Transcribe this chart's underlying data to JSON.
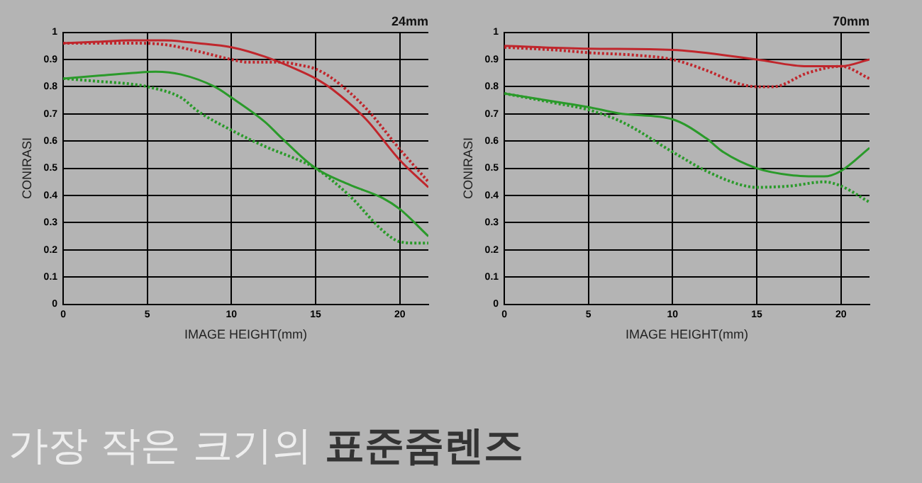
{
  "chart_data": [
    {
      "type": "line",
      "title": "24mm",
      "xlabel": "IMAGE HEIGHT(mm)",
      "ylabel": "CONIRASI",
      "xlim": [
        0,
        21.7
      ],
      "xticks": [
        0,
        5,
        10,
        15,
        20
      ],
      "ylim": [
        0,
        1
      ],
      "yticks": [
        0,
        0.1,
        0.2,
        0.3,
        0.4,
        0.5,
        0.6,
        0.7,
        0.8,
        0.9,
        1
      ],
      "grid": true,
      "marker": "none",
      "annotations": [
        "가장 작은 크기의",
        "표준줌렌즈"
      ],
      "series": [
        {
          "color": "#c0262c",
          "line_style": "solid",
          "x": [
            0,
            2,
            4,
            6,
            8,
            10,
            12,
            14,
            15,
            16,
            18,
            20,
            21.7
          ],
          "values": [
            0.96,
            0.965,
            0.97,
            0.97,
            0.96,
            0.945,
            0.91,
            0.86,
            0.83,
            0.79,
            0.68,
            0.53,
            0.43
          ]
        },
        {
          "color": "#c0262c",
          "line_style": "dotted",
          "x": [
            0,
            2,
            4,
            6,
            8,
            10,
            11,
            12,
            13,
            14,
            15,
            16,
            18,
            20,
            21.7
          ],
          "values": [
            0.96,
            0.96,
            0.96,
            0.955,
            0.93,
            0.9,
            0.89,
            0.89,
            0.89,
            0.88,
            0.865,
            0.83,
            0.72,
            0.57,
            0.45
          ]
        },
        {
          "color": "#2a9a2a",
          "line_style": "solid",
          "x": [
            0,
            2,
            4,
            5.5,
            7,
            9,
            10,
            12,
            13,
            15,
            17,
            19,
            20,
            21.7
          ],
          "values": [
            0.83,
            0.84,
            0.85,
            0.855,
            0.845,
            0.8,
            0.76,
            0.67,
            0.61,
            0.5,
            0.44,
            0.39,
            0.35,
            0.25
          ]
        },
        {
          "color": "#2a9a2a",
          "line_style": "dotted",
          "x": [
            0,
            2,
            4,
            5,
            7,
            8,
            10,
            12,
            14,
            15,
            17,
            19,
            20,
            21,
            21.7
          ],
          "values": [
            0.83,
            0.82,
            0.81,
            0.8,
            0.76,
            0.71,
            0.64,
            0.58,
            0.53,
            0.5,
            0.4,
            0.27,
            0.23,
            0.225,
            0.225
          ]
        }
      ]
    },
    {
      "type": "line",
      "title": "70mm",
      "xlabel": "IMAGE HEIGHT(mm)",
      "ylabel": "CONIRASI",
      "xlim": [
        0,
        21.7
      ],
      "xticks": [
        0,
        5,
        10,
        15,
        20
      ],
      "ylim": [
        0,
        1
      ],
      "yticks": [
        0,
        0.1,
        0.2,
        0.3,
        0.4,
        0.5,
        0.6,
        0.7,
        0.8,
        0.9,
        1
      ],
      "grid": true,
      "marker": "none",
      "series": [
        {
          "color": "#c0262c",
          "line_style": "solid",
          "x": [
            0,
            5,
            10,
            15,
            18,
            20,
            21.7
          ],
          "values": [
            0.95,
            0.94,
            0.935,
            0.9,
            0.875,
            0.875,
            0.9
          ]
        },
        {
          "color": "#c0262c",
          "line_style": "dotted",
          "x": [
            0,
            3,
            5,
            8,
            10,
            12,
            14,
            15,
            16,
            18,
            20,
            21.7
          ],
          "values": [
            0.945,
            0.935,
            0.925,
            0.915,
            0.9,
            0.86,
            0.81,
            0.8,
            0.8,
            0.85,
            0.875,
            0.83
          ]
        },
        {
          "color": "#2a9a2a",
          "line_style": "solid",
          "x": [
            0,
            3,
            5,
            7,
            10,
            12,
            13,
            15,
            17,
            19,
            20,
            21.7
          ],
          "values": [
            0.775,
            0.745,
            0.725,
            0.7,
            0.68,
            0.61,
            0.56,
            0.5,
            0.475,
            0.47,
            0.49,
            0.575
          ]
        },
        {
          "color": "#2a9a2a",
          "line_style": "dotted",
          "x": [
            0,
            3,
            5,
            7,
            10,
            12,
            14,
            15,
            17,
            19,
            20,
            21.7
          ],
          "values": [
            0.775,
            0.74,
            0.715,
            0.67,
            0.56,
            0.49,
            0.44,
            0.43,
            0.435,
            0.45,
            0.435,
            0.375
          ]
        }
      ]
    }
  ]
}
